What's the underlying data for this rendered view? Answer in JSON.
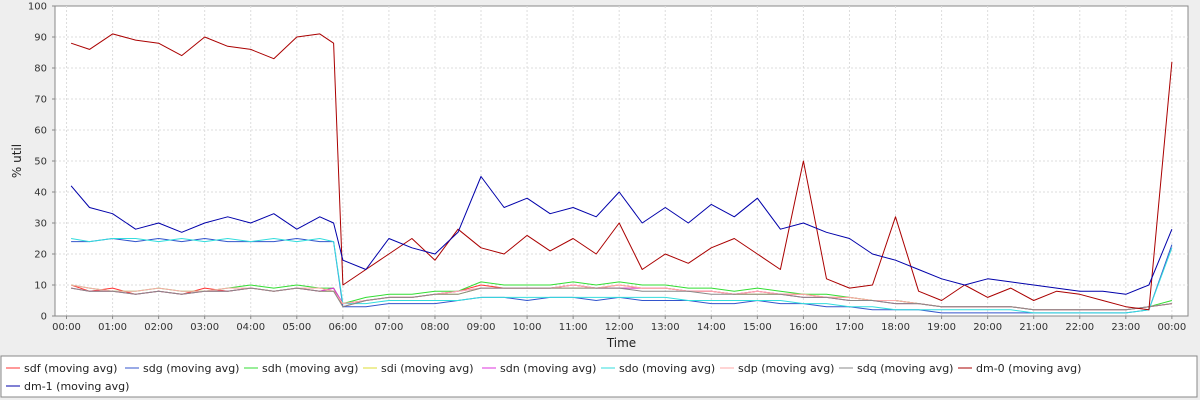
{
  "chart_data": {
    "type": "line",
    "title": "",
    "xlabel": "Time",
    "ylabel": "% util",
    "ylim": [
      0,
      100
    ],
    "xlim": [
      -0.25,
      24.35
    ],
    "yticks": [
      0,
      10,
      20,
      30,
      40,
      50,
      60,
      70,
      80,
      90,
      100
    ],
    "xticks": [
      {
        "at": 0,
        "label": "00:00"
      },
      {
        "at": 1,
        "label": "01:00"
      },
      {
        "at": 2,
        "label": "02:00"
      },
      {
        "at": 3,
        "label": "03:00"
      },
      {
        "at": 4,
        "label": "04:00"
      },
      {
        "at": 5,
        "label": "05:00"
      },
      {
        "at": 6,
        "label": "06:00"
      },
      {
        "at": 7,
        "label": "07:00"
      },
      {
        "at": 8,
        "label": "08:00"
      },
      {
        "at": 9,
        "label": "09:00"
      },
      {
        "at": 10,
        "label": "10:00"
      },
      {
        "at": 11,
        "label": "11:00"
      },
      {
        "at": 12,
        "label": "12:00"
      },
      {
        "at": 13,
        "label": "13:00"
      },
      {
        "at": 14,
        "label": "14:00"
      },
      {
        "at": 15,
        "label": "15:00"
      },
      {
        "at": 16,
        "label": "16:00"
      },
      {
        "at": 17,
        "label": "17:00"
      },
      {
        "at": 18,
        "label": "18:00"
      },
      {
        "at": 19,
        "label": "19:00"
      },
      {
        "at": 20,
        "label": "20:00"
      },
      {
        "at": 21,
        "label": "21:00"
      },
      {
        "at": 22,
        "label": "22:00"
      },
      {
        "at": 23,
        "label": "23:00"
      },
      {
        "at": 24,
        "label": "00:00"
      }
    ],
    "grid": true,
    "legend_position": "bottom",
    "x": [
      0.1,
      0.5,
      1.0,
      1.5,
      2.0,
      2.5,
      3.0,
      3.5,
      4.0,
      4.5,
      5.0,
      5.5,
      5.8,
      6.0,
      6.5,
      7.0,
      7.5,
      8.0,
      8.5,
      9.0,
      9.5,
      10.0,
      10.5,
      11.0,
      11.5,
      12.0,
      12.5,
      13.0,
      13.5,
      14.0,
      14.5,
      15.0,
      15.5,
      16.0,
      16.5,
      17.0,
      17.5,
      18.0,
      18.5,
      19.0,
      19.5,
      20.0,
      20.5,
      21.0,
      21.5,
      22.0,
      22.5,
      23.0,
      23.5,
      24.0
    ],
    "series": [
      {
        "name": "sdf (moving avg)",
        "color": "#ff3333",
        "values": [
          10,
          8,
          9,
          7,
          8,
          7,
          9,
          8,
          9,
          8,
          9,
          8,
          9,
          3,
          5,
          6,
          6,
          7,
          8,
          10,
          9,
          9,
          9,
          10,
          9,
          10,
          9,
          9,
          8,
          8,
          7,
          8,
          7,
          7,
          6,
          6,
          5,
          5,
          4,
          3,
          3,
          3,
          3,
          2,
          2,
          2,
          2,
          2,
          3,
          4
        ]
      },
      {
        "name": "sdg (moving avg)",
        "color": "#3355cc",
        "values": [
          24,
          24,
          25,
          24,
          25,
          24,
          25,
          24,
          24,
          24,
          25,
          24,
          24,
          3,
          3,
          4,
          4,
          4,
          5,
          6,
          6,
          5,
          6,
          6,
          5,
          6,
          5,
          5,
          5,
          4,
          4,
          5,
          4,
          4,
          3,
          3,
          2,
          2,
          2,
          1,
          1,
          1,
          1,
          1,
          1,
          1,
          1,
          1,
          2,
          23
        ]
      },
      {
        "name": "sdh (moving avg)",
        "color": "#33dd33",
        "values": [
          10,
          9,
          8,
          8,
          9,
          8,
          8,
          9,
          10,
          9,
          10,
          9,
          9,
          4,
          6,
          7,
          7,
          8,
          8,
          11,
          10,
          10,
          10,
          11,
          10,
          11,
          10,
          10,
          9,
          9,
          8,
          9,
          8,
          7,
          7,
          6,
          5,
          5,
          4,
          3,
          3,
          3,
          3,
          2,
          2,
          2,
          2,
          2,
          3,
          5
        ]
      },
      {
        "name": "sdi (moving avg)",
        "color": "#dddd33",
        "values": [
          9,
          8,
          8,
          7,
          8,
          7,
          8,
          8,
          9,
          8,
          9,
          8,
          8,
          4,
          5,
          6,
          6,
          7,
          7,
          9,
          9,
          9,
          9,
          9,
          9,
          9,
          9,
          9,
          8,
          8,
          7,
          7,
          7,
          6,
          6,
          5,
          5,
          4,
          4,
          3,
          3,
          3,
          3,
          2,
          2,
          2,
          2,
          2,
          3,
          4
        ]
      },
      {
        "name": "sdn (moving avg)",
        "color": "#dd33dd",
        "values": [
          9,
          8,
          8,
          7,
          8,
          7,
          8,
          8,
          9,
          8,
          9,
          8,
          9,
          4,
          5,
          6,
          6,
          7,
          8,
          9,
          9,
          9,
          9,
          10,
          9,
          9,
          9,
          9,
          8,
          8,
          7,
          8,
          7,
          6,
          6,
          5,
          5,
          4,
          4,
          3,
          3,
          3,
          3,
          2,
          2,
          2,
          2,
          2,
          3,
          4
        ]
      },
      {
        "name": "sdo (moving avg)",
        "color": "#33dddd",
        "values": [
          25,
          24,
          25,
          25,
          24,
          25,
          24,
          25,
          24,
          25,
          24,
          25,
          24,
          4,
          4,
          5,
          5,
          5,
          5,
          6,
          6,
          6,
          6,
          6,
          6,
          6,
          6,
          6,
          5,
          5,
          5,
          5,
          5,
          4,
          4,
          3,
          3,
          2,
          2,
          2,
          2,
          2,
          2,
          1,
          1,
          1,
          1,
          1,
          2,
          22
        ]
      },
      {
        "name": "sdp (moving avg)",
        "color": "#ffaaaa",
        "values": [
          10,
          9,
          8,
          8,
          9,
          8,
          8,
          9,
          9,
          8,
          9,
          9,
          8,
          4,
          5,
          6,
          6,
          7,
          8,
          9,
          9,
          9,
          9,
          10,
          9,
          10,
          9,
          9,
          8,
          8,
          7,
          8,
          7,
          7,
          6,
          6,
          5,
          5,
          4,
          3,
          3,
          3,
          3,
          2,
          2,
          2,
          2,
          2,
          3,
          4
        ]
      },
      {
        "name": "sdq (moving avg)",
        "color": "#888888",
        "values": [
          9,
          8,
          8,
          7,
          8,
          7,
          8,
          8,
          9,
          8,
          9,
          8,
          8,
          3,
          5,
          6,
          6,
          7,
          7,
          9,
          9,
          9,
          9,
          9,
          9,
          9,
          8,
          8,
          8,
          7,
          7,
          7,
          7,
          6,
          6,
          5,
          5,
          4,
          4,
          3,
          3,
          3,
          3,
          2,
          2,
          2,
          2,
          2,
          3,
          4
        ]
      },
      {
        "name": "dm-0 (moving avg)",
        "color": "#aa0000",
        "values": [
          88,
          86,
          91,
          89,
          88,
          84,
          90,
          87,
          86,
          83,
          90,
          91,
          88,
          10,
          15,
          20,
          25,
          18,
          28,
          22,
          20,
          26,
          21,
          25,
          20,
          30,
          15,
          20,
          17,
          22,
          25,
          20,
          15,
          50,
          12,
          9,
          10,
          32,
          8,
          5,
          10,
          6,
          9,
          5,
          8,
          7,
          5,
          3,
          2,
          82
        ]
      },
      {
        "name": "dm-1 (moving avg)",
        "color": "#0000aa",
        "values": [
          42,
          35,
          33,
          28,
          30,
          27,
          30,
          32,
          30,
          33,
          28,
          32,
          30,
          18,
          15,
          25,
          22,
          20,
          27,
          45,
          35,
          38,
          33,
          35,
          32,
          40,
          30,
          35,
          30,
          36,
          32,
          38,
          28,
          30,
          27,
          25,
          20,
          18,
          15,
          12,
          10,
          12,
          11,
          10,
          9,
          8,
          8,
          7,
          10,
          28
        ]
      }
    ]
  }
}
